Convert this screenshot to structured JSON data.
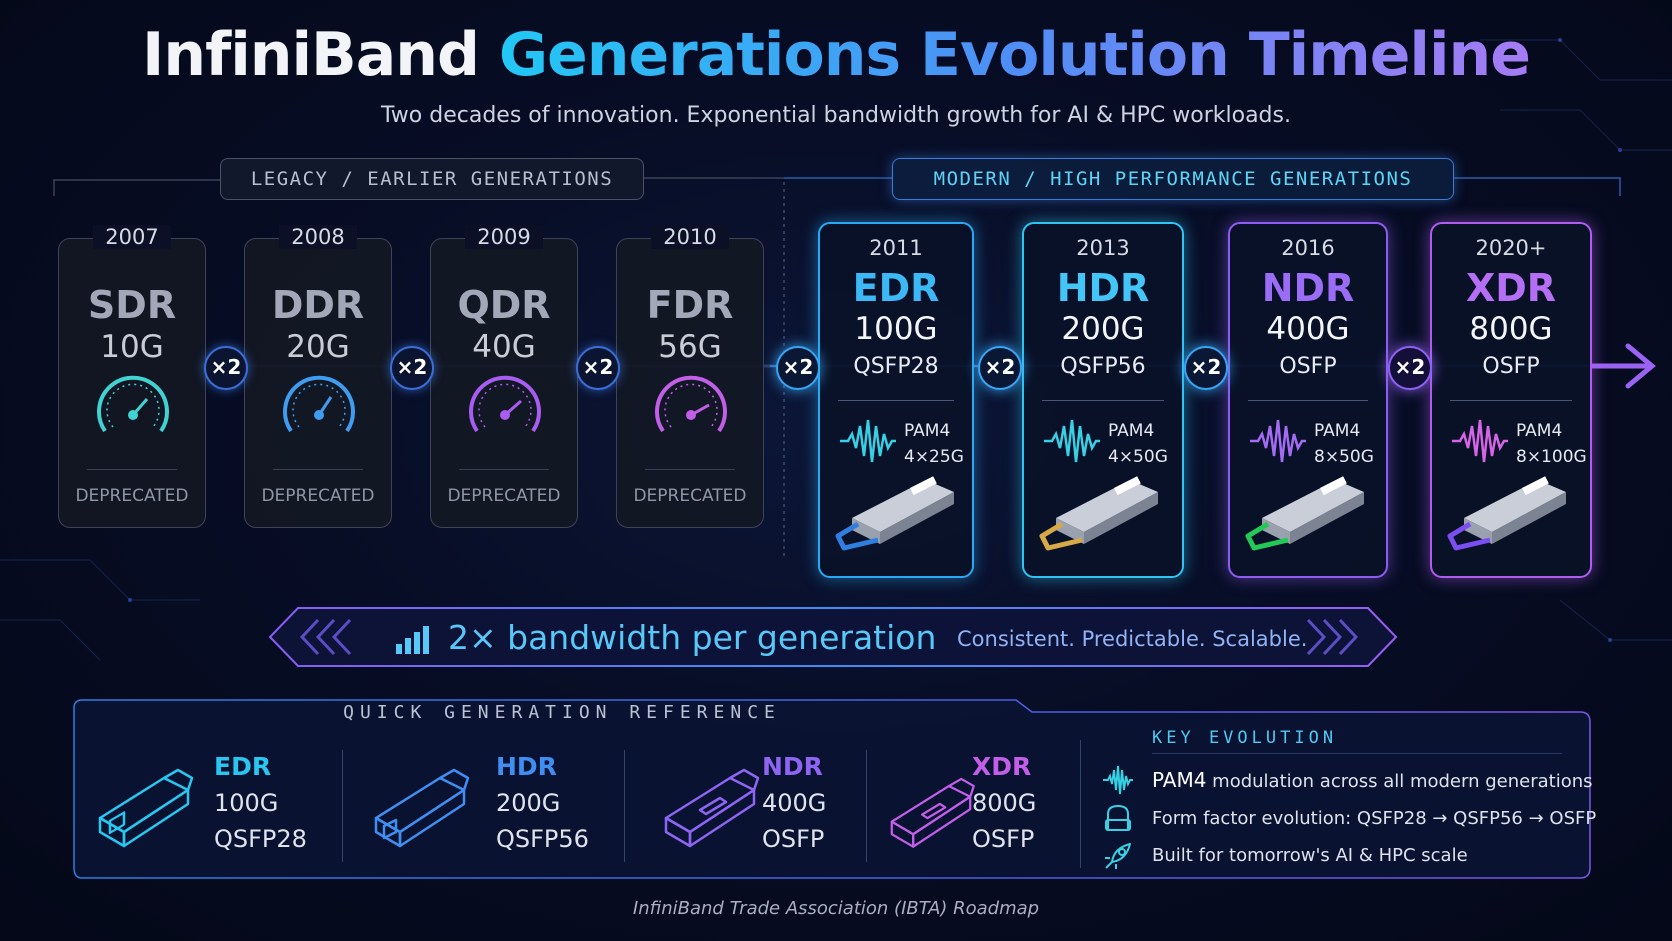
{
  "title": {
    "part1": "InfiniBand",
    "part2": "Generations Evolution Timeline"
  },
  "subtitle": "Two decades of innovation. Exponential bandwidth growth for AI & HPC workloads.",
  "groups": {
    "legacy": "LEGACY / EARLIER GENERATIONS",
    "modern": "MODERN / HIGH PERFORMANCE GENERATIONS"
  },
  "legacy": [
    {
      "year": "2007",
      "gen": "SDR",
      "speed": "10G",
      "status": "DEPRECATED",
      "color": "#3fd3d2"
    },
    {
      "year": "2008",
      "gen": "DDR",
      "speed": "20G",
      "status": "DEPRECATED",
      "color": "#3e9df0"
    },
    {
      "year": "2009",
      "gen": "QDR",
      "speed": "40G",
      "status": "DEPRECATED",
      "color": "#a85cf0"
    },
    {
      "year": "2010",
      "gen": "FDR",
      "speed": "56G",
      "status": "DEPRECATED",
      "color": "#c35ee8"
    }
  ],
  "modern": [
    {
      "year": "2011",
      "gen": "EDR",
      "speed": "100G",
      "form": "QSFP28",
      "mod1": "PAM4",
      "mod2": "4×25G",
      "color": "#2aa9f2",
      "latch": "#2f7ee0"
    },
    {
      "year": "2013",
      "gen": "HDR",
      "speed": "200G",
      "form": "QSFP56",
      "mod1": "PAM4",
      "mod2": "4×50G",
      "color": "#2fc4f2",
      "latch": "#d7a847"
    },
    {
      "year": "2016",
      "gen": "NDR",
      "speed": "400G",
      "form": "OSFP",
      "mod1": "PAM4",
      "mod2": "8×50G",
      "color": "#8f5cf2",
      "latch": "#23c857"
    },
    {
      "year": "2020+",
      "gen": "XDR",
      "speed": "800G",
      "form": "OSFP",
      "mod1": "PAM4",
      "mod2": "8×100G",
      "color": "#b05cf0",
      "latch": "#7a4ef0"
    }
  ],
  "multiplier": "×2",
  "banner": {
    "main": "2× bandwidth per generation",
    "sub": "Consistent. Predictable. Scalable."
  },
  "reference": {
    "title": "QUICK GENERATION REFERENCE",
    "items": [
      {
        "gen": "EDR",
        "speed": "100G",
        "form": "QSFP28",
        "color": "#29c6f1"
      },
      {
        "gen": "HDR",
        "speed": "200G",
        "form": "QSFP56",
        "color": "#3f8ff3"
      },
      {
        "gen": "NDR",
        "speed": "400G",
        "form": "OSFP",
        "color": "#8e64f3"
      },
      {
        "gen": "XDR",
        "speed": "800G",
        "form": "OSFP",
        "color": "#c35ee9"
      }
    ]
  },
  "key": {
    "title": "KEY EVOLUTION",
    "item1_bold": "PAM4",
    "item1_rest": " modulation across all modern generations",
    "item2": "Form factor evolution:  QSFP28 → QSFP56 → OSFP",
    "item3": "Built for tomorrow's AI & HPC scale"
  },
  "footer": "InfiniBand Trade Association (IBTA) Roadmap"
}
